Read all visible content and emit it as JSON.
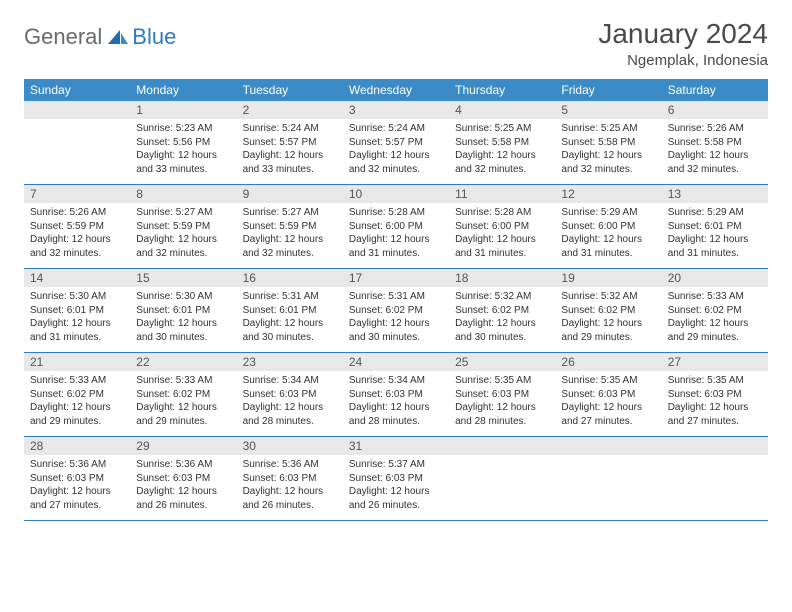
{
  "brand": {
    "part1": "General",
    "part2": "Blue"
  },
  "title": "January 2024",
  "location": "Ngemplak, Indonesia",
  "colors": {
    "header_bg": "#3b8bc8",
    "header_text": "#ffffff",
    "daynum_bg": "#e8e8e8",
    "row_border": "#2f7bbf",
    "logo_gray": "#6b6b6b",
    "logo_blue": "#2f7bbf"
  },
  "weekdays": [
    "Sunday",
    "Monday",
    "Tuesday",
    "Wednesday",
    "Thursday",
    "Friday",
    "Saturday"
  ],
  "start_offset": 1,
  "days": [
    {
      "n": "1",
      "sr": "5:23 AM",
      "ss": "5:56 PM",
      "dl": "12 hours and 33 minutes."
    },
    {
      "n": "2",
      "sr": "5:24 AM",
      "ss": "5:57 PM",
      "dl": "12 hours and 33 minutes."
    },
    {
      "n": "3",
      "sr": "5:24 AM",
      "ss": "5:57 PM",
      "dl": "12 hours and 32 minutes."
    },
    {
      "n": "4",
      "sr": "5:25 AM",
      "ss": "5:58 PM",
      "dl": "12 hours and 32 minutes."
    },
    {
      "n": "5",
      "sr": "5:25 AM",
      "ss": "5:58 PM",
      "dl": "12 hours and 32 minutes."
    },
    {
      "n": "6",
      "sr": "5:26 AM",
      "ss": "5:58 PM",
      "dl": "12 hours and 32 minutes."
    },
    {
      "n": "7",
      "sr": "5:26 AM",
      "ss": "5:59 PM",
      "dl": "12 hours and 32 minutes."
    },
    {
      "n": "8",
      "sr": "5:27 AM",
      "ss": "5:59 PM",
      "dl": "12 hours and 32 minutes."
    },
    {
      "n": "9",
      "sr": "5:27 AM",
      "ss": "5:59 PM",
      "dl": "12 hours and 32 minutes."
    },
    {
      "n": "10",
      "sr": "5:28 AM",
      "ss": "6:00 PM",
      "dl": "12 hours and 31 minutes."
    },
    {
      "n": "11",
      "sr": "5:28 AM",
      "ss": "6:00 PM",
      "dl": "12 hours and 31 minutes."
    },
    {
      "n": "12",
      "sr": "5:29 AM",
      "ss": "6:00 PM",
      "dl": "12 hours and 31 minutes."
    },
    {
      "n": "13",
      "sr": "5:29 AM",
      "ss": "6:01 PM",
      "dl": "12 hours and 31 minutes."
    },
    {
      "n": "14",
      "sr": "5:30 AM",
      "ss": "6:01 PM",
      "dl": "12 hours and 31 minutes."
    },
    {
      "n": "15",
      "sr": "5:30 AM",
      "ss": "6:01 PM",
      "dl": "12 hours and 30 minutes."
    },
    {
      "n": "16",
      "sr": "5:31 AM",
      "ss": "6:01 PM",
      "dl": "12 hours and 30 minutes."
    },
    {
      "n": "17",
      "sr": "5:31 AM",
      "ss": "6:02 PM",
      "dl": "12 hours and 30 minutes."
    },
    {
      "n": "18",
      "sr": "5:32 AM",
      "ss": "6:02 PM",
      "dl": "12 hours and 30 minutes."
    },
    {
      "n": "19",
      "sr": "5:32 AM",
      "ss": "6:02 PM",
      "dl": "12 hours and 29 minutes."
    },
    {
      "n": "20",
      "sr": "5:33 AM",
      "ss": "6:02 PM",
      "dl": "12 hours and 29 minutes."
    },
    {
      "n": "21",
      "sr": "5:33 AM",
      "ss": "6:02 PM",
      "dl": "12 hours and 29 minutes."
    },
    {
      "n": "22",
      "sr": "5:33 AM",
      "ss": "6:02 PM",
      "dl": "12 hours and 29 minutes."
    },
    {
      "n": "23",
      "sr": "5:34 AM",
      "ss": "6:03 PM",
      "dl": "12 hours and 28 minutes."
    },
    {
      "n": "24",
      "sr": "5:34 AM",
      "ss": "6:03 PM",
      "dl": "12 hours and 28 minutes."
    },
    {
      "n": "25",
      "sr": "5:35 AM",
      "ss": "6:03 PM",
      "dl": "12 hours and 28 minutes."
    },
    {
      "n": "26",
      "sr": "5:35 AM",
      "ss": "6:03 PM",
      "dl": "12 hours and 27 minutes."
    },
    {
      "n": "27",
      "sr": "5:35 AM",
      "ss": "6:03 PM",
      "dl": "12 hours and 27 minutes."
    },
    {
      "n": "28",
      "sr": "5:36 AM",
      "ss": "6:03 PM",
      "dl": "12 hours and 27 minutes."
    },
    {
      "n": "29",
      "sr": "5:36 AM",
      "ss": "6:03 PM",
      "dl": "12 hours and 26 minutes."
    },
    {
      "n": "30",
      "sr": "5:36 AM",
      "ss": "6:03 PM",
      "dl": "12 hours and 26 minutes."
    },
    {
      "n": "31",
      "sr": "5:37 AM",
      "ss": "6:03 PM",
      "dl": "12 hours and 26 minutes."
    }
  ],
  "labels": {
    "sunrise": "Sunrise:",
    "sunset": "Sunset:",
    "daylight": "Daylight:"
  }
}
